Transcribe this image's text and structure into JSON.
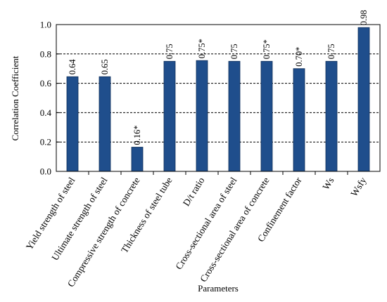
{
  "chart_data": {
    "type": "bar",
    "title": "",
    "xlabel": "Parameters",
    "ylabel": "Correlation  Coefficient",
    "ylim": [
      0,
      1.0
    ],
    "yticks": [
      "0.0",
      "0.2",
      "0.4",
      "0.6",
      "0.8",
      "1.0"
    ],
    "grid": "dashed horizontal at 0.2, 0.4, 0.6, 0.8",
    "legend": "none",
    "bar_color": "#1f4e8c",
    "categories": [
      "Yield strength of steel",
      "Ultimate strength of steel",
      "Compressive strength of concrete",
      "Thickness of steel tube",
      "D/t ratio",
      "Cross-sectional area of steel",
      "Cross-sectional area of concrete",
      "Confinement factor",
      "Ws",
      "Wsfy"
    ],
    "values": [
      0.645,
      0.645,
      0.165,
      0.75,
      0.755,
      0.75,
      0.75,
      0.7,
      0.75,
      0.98
    ],
    "data_labels": [
      "0.64",
      "0.65",
      "0.16*",
      "0.75",
      "0.75*",
      "0.75",
      "0.75*",
      "0.70*",
      "0.75",
      "0.98"
    ]
  }
}
